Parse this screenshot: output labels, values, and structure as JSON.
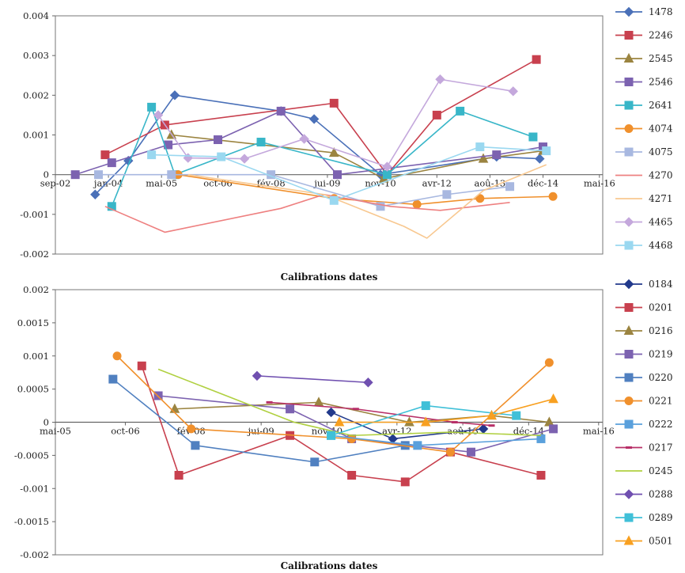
{
  "chart_data": [
    {
      "type": "line",
      "xlabel": "Calibrations dates",
      "ylim": [
        -0.002,
        0.004
      ],
      "yticks": [
        "0.004",
        "0.003",
        "0.002",
        "0.001",
        "0",
        "-0.001",
        "-0.002"
      ],
      "x_axis": {
        "start": "2002-09",
        "end": "2016-06",
        "ticks": [
          {
            "date": "2002-09",
            "label": "sep-02"
          },
          {
            "date": "2004-01",
            "label": "jan-04"
          },
          {
            "date": "2005-05",
            "label": "mai-05"
          },
          {
            "date": "2006-10",
            "label": "oct-06"
          },
          {
            "date": "2008-02",
            "label": "fév-08"
          },
          {
            "date": "2009-07",
            "label": "jui-09"
          },
          {
            "date": "2010-11",
            "label": "nov-10"
          },
          {
            "date": "2012-04",
            "label": "avr-12"
          },
          {
            "date": "2013-08",
            "label": "aoû-13"
          },
          {
            "date": "2014-12",
            "label": "déc-14"
          },
          {
            "date": "2016-05",
            "label": "mai-16"
          }
        ]
      },
      "grid": false,
      "legend": "right",
      "series": [
        {
          "name": "1478",
          "color": "#4a70b8",
          "marker": "diamond",
          "points": [
            [
              "2003-09",
              -0.0005
            ],
            [
              "2004-07",
              0.00035
            ],
            [
              "2005-09",
              0.002
            ],
            [
              "2008-05",
              0.0016
            ],
            [
              "2009-03",
              0.0014
            ],
            [
              "2010-11",
              0.0
            ],
            [
              "2013-10",
              0.00045
            ],
            [
              "2014-11",
              0.0004
            ]
          ]
        },
        {
          "name": "2246",
          "color": "#c8404e",
          "marker": "square",
          "points": [
            [
              "2003-12",
              0.0005
            ],
            [
              "2005-06",
              0.00125
            ],
            [
              "2009-09",
              0.0018
            ],
            [
              "2011-01",
              0.0
            ],
            [
              "2012-04",
              0.0015
            ],
            [
              "2014-10",
              0.0029
            ]
          ]
        },
        {
          "name": "2545",
          "color": "#9b8440",
          "marker": "triangle",
          "points": [
            [
              "2005-08",
              0.001
            ],
            [
              "2009-09",
              0.00055
            ],
            [
              "2010-12",
              -0.0001
            ],
            [
              "2013-06",
              0.0004
            ],
            [
              "2014-12",
              0.0006
            ]
          ]
        },
        {
          "name": "2546",
          "color": "#7c62b0",
          "marker": "square",
          "points": [
            [
              "2003-03",
              0.0
            ],
            [
              "2004-02",
              0.0003
            ],
            [
              "2005-07",
              0.00075
            ],
            [
              "2006-10",
              0.00088
            ],
            [
              "2008-05",
              0.0016
            ],
            [
              "2009-10",
              0.0
            ],
            [
              "2013-10",
              0.0005
            ],
            [
              "2014-12",
              0.0007
            ]
          ]
        },
        {
          "name": "2641",
          "color": "#38b6c8",
          "marker": "square",
          "points": [
            [
              "2004-02",
              -0.0008
            ],
            [
              "2005-02",
              0.0017
            ],
            [
              "2005-09",
              0.0
            ],
            [
              "2007-11",
              0.00082
            ],
            [
              "2011-01",
              0.0
            ],
            [
              "2012-11",
              0.0016
            ],
            [
              "2014-09",
              0.00095
            ]
          ]
        },
        {
          "name": "4074",
          "color": "#f0902c",
          "marker": "circle",
          "points": [
            [
              "2005-10",
              0.0
            ],
            [
              "2009-09",
              -0.0006
            ],
            [
              "2011-10",
              -0.00075
            ],
            [
              "2013-05",
              -0.0006
            ],
            [
              "2015-03",
              -0.00055
            ]
          ]
        },
        {
          "name": "4075",
          "color": "#a8b8e0",
          "marker": "square",
          "points": [
            [
              "2003-10",
              0.0
            ],
            [
              "2005-08",
              0.0
            ],
            [
              "2008-02",
              0.0
            ],
            [
              "2010-11",
              -0.0008
            ],
            [
              "2012-07",
              -0.0005
            ],
            [
              "2014-02",
              -0.0003
            ]
          ]
        },
        {
          "name": "4270",
          "color": "#ee8080",
          "marker": "none",
          "points": [
            [
              "2003-12",
              -0.0008
            ],
            [
              "2005-06",
              -0.00145
            ],
            [
              "2008-05",
              -0.00085
            ],
            [
              "2009-06",
              -0.0005
            ],
            [
              "2011-02",
              -0.0008
            ],
            [
              "2012-05",
              -0.0009
            ],
            [
              "2014-02",
              -0.0007
            ]
          ]
        },
        {
          "name": "4271",
          "color": "#f8c890",
          "marker": "none",
          "points": [
            [
              "2006-01",
              0.0
            ],
            [
              "2009-06",
              -0.0005
            ],
            [
              "2011-06",
              -0.0013
            ],
            [
              "2012-01",
              -0.0016
            ],
            [
              "2013-06",
              -0.0004
            ],
            [
              "2015-01",
              0.00025
            ]
          ]
        },
        {
          "name": "4465",
          "color": "#c4a8dc",
          "marker": "diamond",
          "points": [
            [
              "2005-04",
              0.0015
            ],
            [
              "2006-01",
              0.00042
            ],
            [
              "2007-06",
              0.0004
            ],
            [
              "2008-12",
              0.0009
            ],
            [
              "2011-01",
              0.0002
            ],
            [
              "2012-05",
              0.0024
            ],
            [
              "2014-03",
              0.0021
            ]
          ]
        },
        {
          "name": "4468",
          "color": "#9ad8f0",
          "marker": "square",
          "points": [
            [
              "2005-02",
              0.0005
            ],
            [
              "2006-11",
              0.00045
            ],
            [
              "2009-09",
              -0.00065
            ],
            [
              "2013-05",
              0.0007
            ],
            [
              "2015-01",
              0.0006
            ]
          ]
        }
      ]
    },
    {
      "type": "line",
      "xlabel": "Calibrations dates",
      "ylim": [
        -0.002,
        0.002
      ],
      "yticks": [
        "0.002",
        "0.0015",
        "0.001",
        "0.0005",
        "0",
        "-0.0005",
        "-0.001",
        "-0.0015",
        "-0.002"
      ],
      "x_axis": {
        "start": "2005-05",
        "end": "2016-06",
        "ticks": [
          {
            "date": "2005-05",
            "label": "mai-05"
          },
          {
            "date": "2006-10",
            "label": "oct-06"
          },
          {
            "date": "2008-02",
            "label": "fév-08"
          },
          {
            "date": "2009-07",
            "label": "jui-09"
          },
          {
            "date": "2010-11",
            "label": "nov-10"
          },
          {
            "date": "2012-04",
            "label": "avr-12"
          },
          {
            "date": "2013-08",
            "label": "aoû-13"
          },
          {
            "date": "2014-12",
            "label": "déc-14"
          },
          {
            "date": "2016-05",
            "label": "mai-16"
          }
        ]
      },
      "grid": false,
      "legend": "right",
      "series": [
        {
          "name": "0184",
          "color": "#223a8c",
          "marker": "diamond",
          "points": [
            [
              "2010-12",
              0.00015
            ],
            [
              "2012-03",
              -0.00025
            ],
            [
              "2014-01",
              -0.0001
            ]
          ]
        },
        {
          "name": "0201",
          "color": "#c8404e",
          "marker": "square",
          "points": [
            [
              "2007-02",
              0.00085
            ],
            [
              "2007-11",
              -0.0008
            ],
            [
              "2010-02",
              -0.0002
            ],
            [
              "2011-05",
              -0.0008
            ],
            [
              "2012-06",
              -0.0009
            ],
            [
              "2013-05",
              -0.00045
            ],
            [
              "2015-03",
              -0.0008
            ]
          ]
        },
        {
          "name": "0216",
          "color": "#9b8440",
          "marker": "triangle",
          "points": [
            [
              "2007-10",
              0.0002
            ],
            [
              "2010-09",
              0.0003
            ],
            [
              "2012-07",
              0.0
            ],
            [
              "2014-03",
              0.0001
            ],
            [
              "2015-05",
              0.0
            ]
          ]
        },
        {
          "name": "0219",
          "color": "#7c62b0",
          "marker": "square",
          "points": [
            [
              "2007-06",
              0.0004
            ],
            [
              "2010-02",
              0.0002
            ],
            [
              "2011-05",
              -0.00025
            ],
            [
              "2013-10",
              -0.00045
            ],
            [
              "2015-06",
              -0.0001
            ]
          ]
        },
        {
          "name": "0220",
          "color": "#5080c0",
          "marker": "square",
          "points": [
            [
              "2006-07",
              0.00065
            ],
            [
              "2008-03",
              -0.00035
            ],
            [
              "2010-08",
              -0.0006
            ],
            [
              "2012-06",
              -0.00035
            ]
          ]
        },
        {
          "name": "0221",
          "color": "#f0902c",
          "marker": "circle",
          "points": [
            [
              "2006-08",
              0.001
            ],
            [
              "2008-02",
              -0.0001
            ],
            [
              "2011-05",
              -0.00025
            ],
            [
              "2013-05",
              -0.00045
            ],
            [
              "2015-05",
              0.0009
            ]
          ]
        },
        {
          "name": "0222",
          "color": "#5aa0dc",
          "marker": "square",
          "points": [
            [
              "2010-12",
              -0.0002
            ],
            [
              "2012-09",
              -0.00035
            ],
            [
              "2015-03",
              -0.00025
            ]
          ]
        },
        {
          "name": "0217",
          "color": "#b83068",
          "marker": "dash",
          "points": [
            [
              "2009-09",
              0.0003
            ],
            [
              "2011-06",
              0.0002
            ],
            [
              "2013-06",
              0.0
            ],
            [
              "2014-03",
              -5e-05
            ]
          ]
        },
        {
          "name": "0245",
          "color": "#b0d040",
          "marker": "none",
          "points": [
            [
              "2007-06",
              0.0008
            ],
            [
              "2010-03",
              0.0
            ],
            [
              "2011-05",
              -0.0002
            ],
            [
              "2013-05",
              -0.00015
            ],
            [
              "2015-03",
              -0.0002
            ]
          ]
        },
        {
          "name": "0288",
          "color": "#7050b0",
          "marker": "diamond",
          "points": [
            [
              "2009-06",
              0.0007
            ],
            [
              "2011-09",
              0.0006
            ]
          ]
        },
        {
          "name": "0289",
          "color": "#40c0d8",
          "marker": "square",
          "points": [
            [
              "2010-12",
              -0.0002
            ],
            [
              "2012-11",
              0.00025
            ],
            [
              "2014-09",
              0.0001
            ]
          ]
        },
        {
          "name": "0501",
          "color": "#f8a020",
          "marker": "triangle",
          "points": [
            [
              "2011-02",
              0.0
            ],
            [
              "2012-11",
              0.0
            ],
            [
              "2014-03",
              0.0001
            ],
            [
              "2015-06",
              0.00035
            ]
          ]
        }
      ]
    }
  ]
}
